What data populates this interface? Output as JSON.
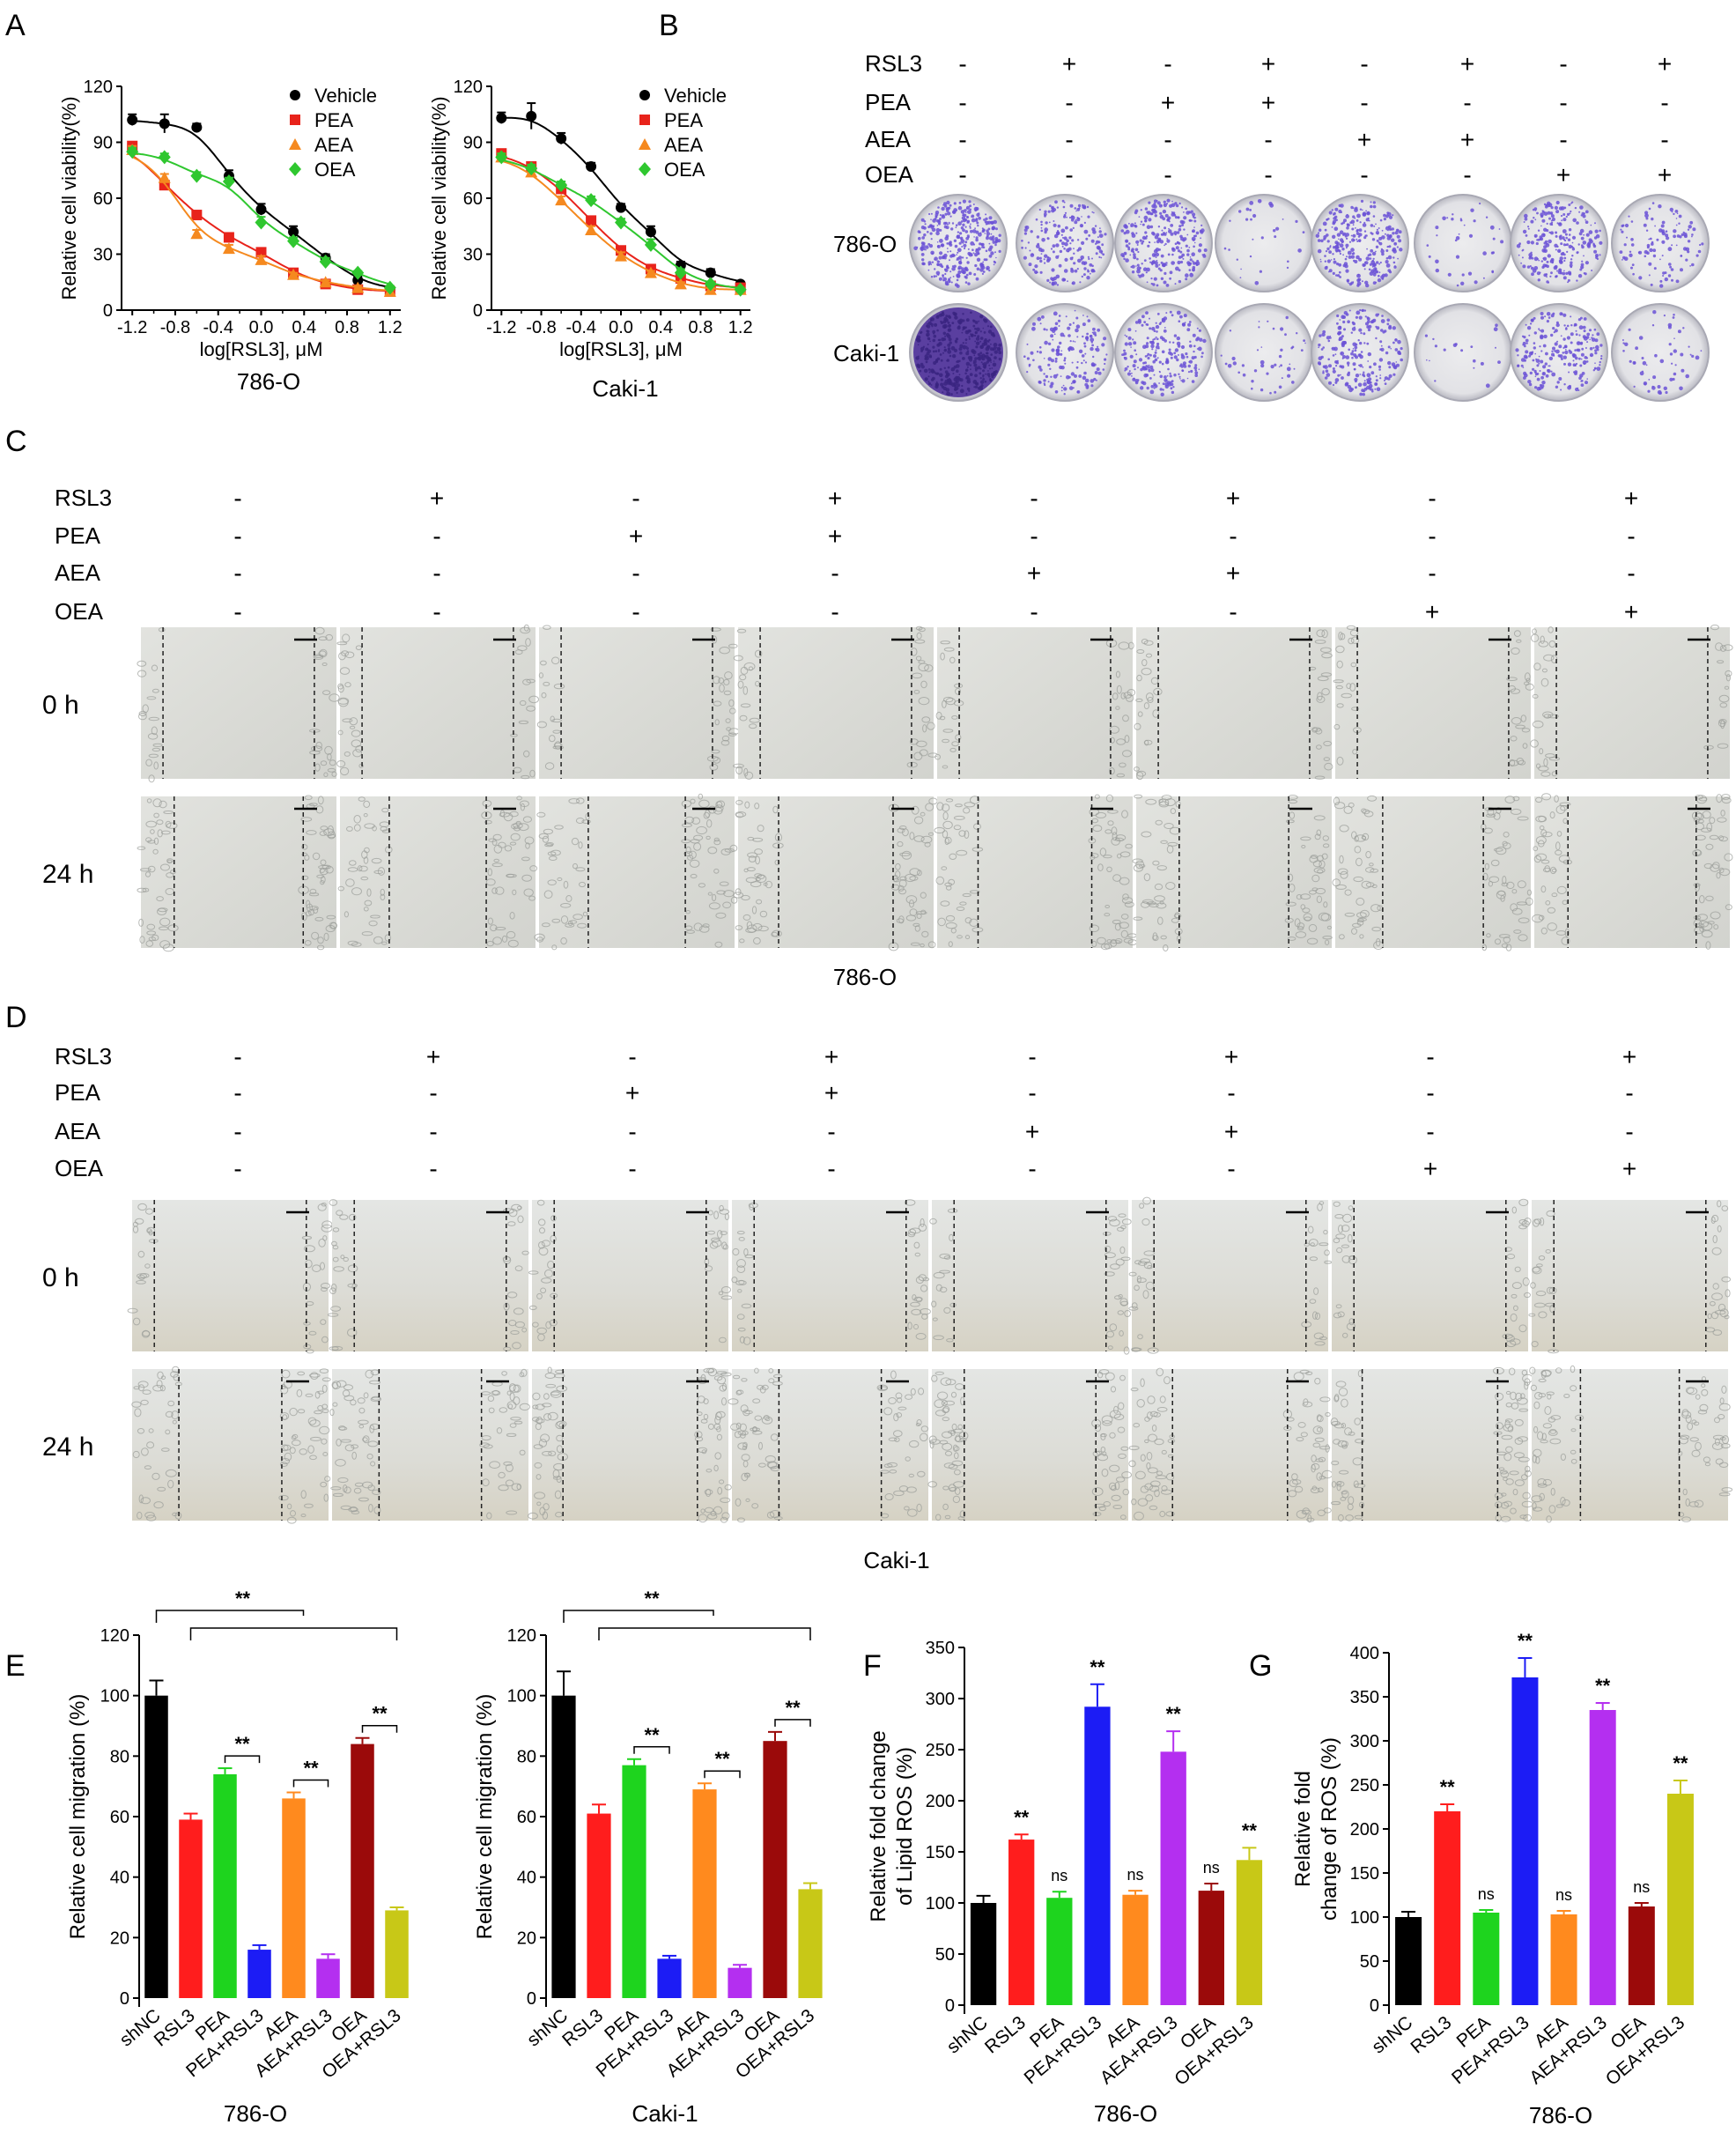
{
  "panels": {
    "A": "A",
    "B": "B",
    "C": "C",
    "D": "D",
    "E": "E",
    "F": "F",
    "G": "G"
  },
  "panel_A": {
    "charts": [
      {
        "type": "scatter",
        "cell_line": "786-O",
        "xlabel": "log[RSL3], μM",
        "ylabel": "Relative cell viability(%)",
        "xlim": [
          -1.3,
          1.3
        ],
        "ylim": [
          0,
          120
        ],
        "xticks": [
          "-1.2",
          "-0.8",
          "-0.4",
          "0.0",
          "0.4",
          "0.8",
          "1.2"
        ],
        "xtick_values": [
          -1.2,
          -0.8,
          -0.4,
          0.0,
          0.4,
          0.8,
          1.2
        ],
        "yticks": [
          "0",
          "30",
          "60",
          "90",
          "120"
        ],
        "ytick_values": [
          0,
          30,
          60,
          90,
          120
        ],
        "legend_position": "top-right",
        "x": [
          -1.2,
          -0.9,
          -0.6,
          -0.3,
          0.0,
          0.3,
          0.6,
          0.9,
          1.2
        ],
        "series": [
          {
            "name": "Vehicle",
            "color": "#000000",
            "marker": "circle",
            "values": [
              102,
              100,
              98,
              72,
              54,
              42,
              28,
              16,
              11
            ],
            "err": [
              3,
              5,
              2,
              3,
              3,
              3,
              2,
              2,
              1
            ]
          },
          {
            "name": "PEA",
            "color": "#e8231b",
            "marker": "square",
            "values": [
              88,
              67,
              51,
              39,
              31,
              20,
              14,
              11,
              10
            ],
            "err": [
              2,
              2,
              2,
              2,
              2,
              2,
              1,
              1,
              1
            ]
          },
          {
            "name": "AEA",
            "color": "#f5891f",
            "marker": "triangle",
            "values": [
              86,
              71,
              41,
              33,
              27,
              19,
              15,
              12,
              10
            ],
            "err": [
              2,
              2,
              2,
              2,
              2,
              1,
              1,
              1,
              1
            ]
          },
          {
            "name": "OEA",
            "color": "#2fc72f",
            "marker": "diamond",
            "values": [
              85,
              82,
              72,
              69,
              47,
              37,
              26,
              20,
              12
            ],
            "err": [
              2,
              2,
              2,
              2,
              3,
              2,
              2,
              1,
              1
            ]
          }
        ]
      },
      {
        "type": "scatter",
        "cell_line": "Caki-1",
        "xlabel": "log[RSL3], μM",
        "ylabel": "Relative cell viability(%)",
        "xlim": [
          -1.3,
          1.3
        ],
        "ylim": [
          0,
          120
        ],
        "xticks": [
          "-1.2",
          "-0.8",
          "-0.4",
          "0.0",
          "0.4",
          "0.8",
          "1.2"
        ],
        "xtick_values": [
          -1.2,
          -0.8,
          -0.4,
          0.0,
          0.4,
          0.8,
          1.2
        ],
        "yticks": [
          "0",
          "30",
          "60",
          "90",
          "120"
        ],
        "ytick_values": [
          0,
          30,
          60,
          90,
          120
        ],
        "legend_position": "top-right",
        "x": [
          -1.2,
          -0.9,
          -0.6,
          -0.3,
          0.0,
          0.3,
          0.6,
          0.9,
          1.2
        ],
        "series": [
          {
            "name": "Vehicle",
            "color": "#000000",
            "marker": "circle",
            "values": [
              103,
              104,
              92,
              77,
              55,
              42,
              24,
              20,
              14
            ],
            "err": [
              3,
              7,
              3,
              2,
              2,
              3,
              2,
              2,
              1
            ]
          },
          {
            "name": "PEA",
            "color": "#e8231b",
            "marker": "square",
            "values": [
              84,
              77,
              65,
              48,
              32,
              22,
              17,
              13,
              12
            ],
            "err": [
              2,
              2,
              2,
              2,
              2,
              2,
              1,
              1,
              1
            ]
          },
          {
            "name": "AEA",
            "color": "#f5891f",
            "marker": "triangle",
            "values": [
              82,
              74,
              59,
              43,
              29,
              20,
              14,
              11,
              11
            ],
            "err": [
              2,
              2,
              2,
              2,
              2,
              1,
              1,
              1,
              1
            ]
          },
          {
            "name": "OEA",
            "color": "#2fc72f",
            "marker": "diamond",
            "values": [
              82,
              76,
              67,
              59,
              47,
              35,
              20,
              14,
              11
            ],
            "err": [
              2,
              2,
              2,
              2,
              2,
              3,
              2,
              1,
              1
            ]
          }
        ]
      }
    ]
  },
  "panel_B": {
    "treatments": [
      {
        "label": "RSL3",
        "signs": [
          "-",
          "+",
          "-",
          "+",
          "-",
          "+",
          "-",
          "+"
        ]
      },
      {
        "label": "PEA",
        "signs": [
          "-",
          "-",
          "+",
          "+",
          "-",
          "-",
          "-",
          "-"
        ]
      },
      {
        "label": "AEA",
        "signs": [
          "-",
          "-",
          "-",
          "-",
          "+",
          "+",
          "-",
          "-"
        ]
      },
      {
        "label": "OEA",
        "signs": [
          "-",
          "-",
          "-",
          "-",
          "-",
          "-",
          "+",
          "+"
        ]
      }
    ],
    "rows": [
      {
        "label": "786-O",
        "density": [
          0.95,
          0.55,
          0.75,
          0.08,
          0.75,
          0.1,
          0.65,
          0.3
        ]
      },
      {
        "label": "Caki-1",
        "density": [
          1.0,
          0.45,
          0.6,
          0.12,
          0.6,
          0.05,
          0.6,
          0.15
        ]
      }
    ]
  },
  "panel_C": {
    "treatments": [
      {
        "label": "RSL3",
        "signs": [
          "-",
          "+",
          "-",
          "+",
          "-",
          "+",
          "-",
          "+"
        ]
      },
      {
        "label": "PEA",
        "signs": [
          "-",
          "-",
          "+",
          "+",
          "-",
          "-",
          "-",
          "-"
        ]
      },
      {
        "label": "AEA",
        "signs": [
          "-",
          "-",
          "-",
          "-",
          "+",
          "+",
          "-",
          "-"
        ]
      },
      {
        "label": "OEA",
        "signs": [
          "-",
          "-",
          "-",
          "-",
          "-",
          "-",
          "+",
          "+"
        ]
      }
    ],
    "rows": [
      "0 h",
      "24 h"
    ],
    "cell_line": "786-O"
  },
  "panel_D": {
    "treatments": [
      {
        "label": "RSL3",
        "signs": [
          "-",
          "+",
          "-",
          "+",
          "-",
          "+",
          "-",
          "+"
        ]
      },
      {
        "label": "PEA",
        "signs": [
          "-",
          "-",
          "+",
          "+",
          "-",
          "-",
          "-",
          "-"
        ]
      },
      {
        "label": "AEA",
        "signs": [
          "-",
          "-",
          "-",
          "-",
          "+",
          "+",
          "-",
          "-"
        ]
      },
      {
        "label": "OEA",
        "signs": [
          "-",
          "-",
          "-",
          "-",
          "-",
          "-",
          "+",
          "+"
        ]
      }
    ],
    "rows": [
      "0 h",
      "24 h"
    ],
    "cell_line": "Caki-1"
  },
  "chart_data": [
    {
      "type": "bar",
      "panel": "E",
      "cell_line": "786-O",
      "ylabel": "Relative cell migration (%)",
      "ylim": [
        0,
        120
      ],
      "yticks": [
        "0",
        "20",
        "40",
        "60",
        "80",
        "100",
        "120"
      ],
      "ytick_values": [
        0,
        20,
        40,
        60,
        80,
        100,
        120
      ],
      "categories": [
        "shNC",
        "RSL3",
        "PEA",
        "PEA+RSL3",
        "AEA",
        "AEA+RSL3",
        "OEA",
        "OEA+RSL3"
      ],
      "values": [
        100,
        59,
        74,
        16,
        66,
        13,
        84,
        29
      ],
      "err": [
        5,
        2,
        2,
        1.5,
        2,
        1.5,
        2,
        1
      ],
      "colors": [
        "#000000",
        "#ff1d1d",
        "#1ed41e",
        "#1c1cf5",
        "#ff8a1e",
        "#b42ff0",
        "#9b0a0a",
        "#c8c817"
      ],
      "star": "**"
    },
    {
      "type": "bar",
      "panel": "E",
      "cell_line": "Caki-1",
      "ylabel": "Relative cell migration (%)",
      "ylim": [
        0,
        120
      ],
      "yticks": [
        "0",
        "20",
        "40",
        "60",
        "80",
        "100",
        "120"
      ],
      "ytick_values": [
        0,
        20,
        40,
        60,
        80,
        100,
        120
      ],
      "categories": [
        "shNC",
        "RSL3",
        "PEA",
        "PEA+RSL3",
        "AEA",
        "AEA+RSL3",
        "OEA",
        "OEA+RSL3"
      ],
      "values": [
        100,
        61,
        77,
        13,
        69,
        10,
        85,
        36
      ],
      "err": [
        8,
        3,
        2,
        1,
        2,
        1,
        3,
        2
      ],
      "colors": [
        "#000000",
        "#ff1d1d",
        "#1ed41e",
        "#1c1cf5",
        "#ff8a1e",
        "#b42ff0",
        "#9b0a0a",
        "#c8c817"
      ],
      "star": "**"
    },
    {
      "type": "bar",
      "panel": "F",
      "cell_line": "786-O",
      "ylabel": "Relative fold change of Lipid ROS (%)",
      "ylabel_lines": [
        "Relative fold change",
        "of Lipid ROS (%)"
      ],
      "ylim": [
        0,
        350
      ],
      "yticks": [
        "0",
        "50",
        "100",
        "150",
        "200",
        "250",
        "300",
        "350"
      ],
      "ytick_values": [
        0,
        50,
        100,
        150,
        200,
        250,
        300,
        350
      ],
      "categories": [
        "shNC",
        "RSL3",
        "PEA",
        "PEA+RSL3",
        "AEA",
        "AEA+RSL3",
        "OEA",
        "OEA+RSL3"
      ],
      "values": [
        100,
        162,
        105,
        292,
        108,
        248,
        112,
        142
      ],
      "err": [
        7,
        5,
        6,
        22,
        4,
        20,
        7,
        12
      ],
      "colors": [
        "#000000",
        "#ff1d1d",
        "#1ed41e",
        "#1c1cf5",
        "#ff8a1e",
        "#b42ff0",
        "#9b0a0a",
        "#c8c817"
      ],
      "annotations": [
        "",
        "**",
        "ns",
        "**",
        "ns",
        "**",
        "ns",
        "**"
      ]
    },
    {
      "type": "bar",
      "panel": "G",
      "cell_line": "786-O",
      "ylabel": "Relative fold change of ROS (%)",
      "ylabel_lines": [
        "Relative fold",
        "change of ROS (%)"
      ],
      "ylim": [
        0,
        400
      ],
      "yticks": [
        "0",
        "50",
        "100",
        "150",
        "200",
        "250",
        "300",
        "350",
        "400"
      ],
      "ytick_values": [
        0,
        50,
        100,
        150,
        200,
        250,
        300,
        350,
        400
      ],
      "categories": [
        "shNC",
        "RSL3",
        "PEA",
        "PEA+RSL3",
        "AEA",
        "AEA+RSL3",
        "OEA",
        "OEA+RSL3"
      ],
      "values": [
        100,
        220,
        105,
        372,
        103,
        335,
        112,
        240
      ],
      "err": [
        6,
        8,
        3,
        22,
        4,
        8,
        4,
        15
      ],
      "colors": [
        "#000000",
        "#ff1d1d",
        "#1ed41e",
        "#1c1cf5",
        "#ff8a1e",
        "#b42ff0",
        "#9b0a0a",
        "#c8c817"
      ],
      "annotations": [
        "",
        "**",
        "ns",
        "**",
        "ns",
        "**",
        "ns",
        "**"
      ]
    }
  ]
}
